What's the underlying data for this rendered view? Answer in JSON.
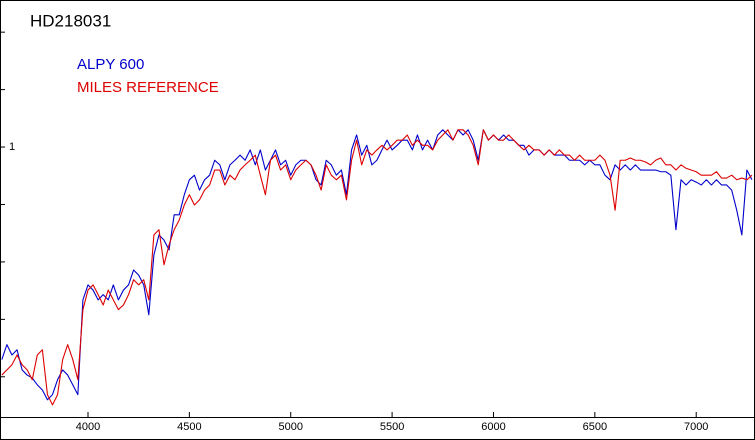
{
  "chart_data": {
    "type": "line",
    "title": "HD218031",
    "xlim": [
      3566,
      7290
    ],
    "xticks": [
      4000,
      4500,
      5000,
      5500,
      6000,
      6500,
      7000
    ],
    "ylim": [
      0.53,
      1.256
    ],
    "yticks": [
      1
    ],
    "minor_yticks": [
      0.6,
      0.7,
      0.8,
      0.9,
      1.1,
      1.2
    ],
    "legend": "top-left",
    "x": [
      3575,
      3600,
      3625,
      3650,
      3675,
      3700,
      3725,
      3750,
      3775,
      3800,
      3825,
      3850,
      3875,
      3900,
      3925,
      3950,
      3975,
      4000,
      4025,
      4050,
      4075,
      4100,
      4125,
      4150,
      4175,
      4200,
      4225,
      4250,
      4275,
      4300,
      4325,
      4350,
      4375,
      4400,
      4425,
      4450,
      4475,
      4500,
      4525,
      4550,
      4575,
      4600,
      4625,
      4650,
      4675,
      4700,
      4725,
      4750,
      4775,
      4800,
      4825,
      4850,
      4875,
      4900,
      4925,
      4950,
      4975,
      5000,
      5025,
      5050,
      5075,
      5100,
      5125,
      5150,
      5175,
      5200,
      5225,
      5250,
      5275,
      5300,
      5325,
      5350,
      5375,
      5400,
      5425,
      5450,
      5475,
      5500,
      5525,
      5550,
      5575,
      5600,
      5625,
      5650,
      5675,
      5700,
      5725,
      5750,
      5775,
      5800,
      5825,
      5850,
      5875,
      5900,
      5925,
      5950,
      5975,
      6000,
      6025,
      6050,
      6075,
      6100,
      6125,
      6150,
      6175,
      6200,
      6225,
      6250,
      6275,
      6300,
      6325,
      6350,
      6375,
      6400,
      6425,
      6450,
      6475,
      6500,
      6525,
      6550,
      6575,
      6600,
      6625,
      6650,
      6675,
      6700,
      6725,
      6750,
      6775,
      6800,
      6825,
      6850,
      6875,
      6900,
      6925,
      6950,
      6975,
      7000,
      7025,
      7050,
      7075,
      7100,
      7125,
      7150,
      7175,
      7200,
      7225,
      7250,
      7275
    ],
    "series": [
      {
        "name": "ALPY 600",
        "color": "#0000cc",
        "values": [
          0.63,
          0.656,
          0.638,
          0.647,
          0.612,
          0.603,
          0.598,
          0.586,
          0.577,
          0.56,
          0.569,
          0.595,
          0.612,
          0.603,
          0.586,
          0.569,
          0.734,
          0.76,
          0.751,
          0.734,
          0.743,
          0.734,
          0.76,
          0.734,
          0.751,
          0.76,
          0.786,
          0.777,
          0.76,
          0.708,
          0.812,
          0.847,
          0.838,
          0.821,
          0.882,
          0.882,
          0.917,
          0.943,
          0.951,
          0.925,
          0.943,
          0.951,
          0.977,
          0.969,
          0.943,
          0.969,
          0.977,
          0.986,
          0.977,
          0.995,
          0.969,
          0.995,
          0.96,
          0.977,
          0.995,
          0.969,
          0.977,
          0.951,
          0.969,
          0.977,
          0.977,
          0.969,
          0.943,
          0.934,
          0.977,
          0.969,
          0.951,
          0.96,
          0.917,
          0.995,
          1.021,
          0.986,
          1.003,
          0.969,
          0.977,
          0.995,
          1.012,
          0.995,
          1.003,
          1.012,
          1.012,
          0.995,
          1.021,
          0.995,
          1.012,
          0.995,
          1.021,
          1.03,
          1.021,
          1.012,
          1.03,
          1.021,
          1.03,
          1.012,
          0.977,
          1.03,
          1.012,
          1.021,
          1.012,
          1.021,
          1.012,
          1.012,
          1.003,
          1.003,
          0.986,
          0.995,
          0.995,
          0.986,
          0.995,
          0.986,
          0.986,
          0.986,
          0.977,
          0.977,
          0.977,
          0.969,
          0.977,
          0.969,
          0.969,
          0.951,
          0.943,
          0.969,
          0.96,
          0.969,
          0.96,
          0.969,
          0.96,
          0.96,
          0.96,
          0.96,
          0.957,
          0.957,
          0.951,
          0.856,
          0.943,
          0.934,
          0.943,
          0.939,
          0.934,
          0.943,
          0.934,
          0.943,
          0.934,
          0.934,
          0.925,
          0.89,
          0.847,
          0.96,
          0.943
        ]
      },
      {
        "name": "MILES REFERENCE",
        "color": "#dd0000",
        "values": [
          0.603,
          0.612,
          0.621,
          0.638,
          0.621,
          0.612,
          0.595,
          0.638,
          0.647,
          0.569,
          0.551,
          0.569,
          0.63,
          0.656,
          0.63,
          0.595,
          0.717,
          0.751,
          0.76,
          0.743,
          0.725,
          0.751,
          0.734,
          0.717,
          0.725,
          0.743,
          0.769,
          0.76,
          0.769,
          0.734,
          0.847,
          0.856,
          0.795,
          0.83,
          0.856,
          0.873,
          0.899,
          0.917,
          0.899,
          0.908,
          0.925,
          0.934,
          0.96,
          0.96,
          0.934,
          0.951,
          0.943,
          0.96,
          0.969,
          0.977,
          0.986,
          0.951,
          0.917,
          0.977,
          0.986,
          0.96,
          0.969,
          0.943,
          0.96,
          0.969,
          0.977,
          0.969,
          0.951,
          0.925,
          0.969,
          0.951,
          0.943,
          0.951,
          0.908,
          0.977,
          1.012,
          0.969,
          0.995,
          0.986,
          0.995,
          1.003,
          0.995,
          1.003,
          1.012,
          1.012,
          1.021,
          1.003,
          1.012,
          1.003,
          1.003,
          0.995,
          1.012,
          1.021,
          1.03,
          1.012,
          1.03,
          1.03,
          1.021,
          1.003,
          0.969,
          1.03,
          1.012,
          1.021,
          1.012,
          1.012,
          1.021,
          1.012,
          1.003,
          0.995,
          1.003,
          0.995,
          0.995,
          0.986,
          0.995,
          0.986,
          0.995,
          0.986,
          0.986,
          0.977,
          0.986,
          0.977,
          0.977,
          0.977,
          0.986,
          0.977,
          0.951,
          0.89,
          0.977,
          0.977,
          0.981,
          0.977,
          0.977,
          0.974,
          0.969,
          0.977,
          0.981,
          0.969,
          0.969,
          0.96,
          0.969,
          0.963,
          0.96,
          0.957,
          0.951,
          0.951,
          0.951,
          0.957,
          0.946,
          0.946,
          0.951,
          0.943,
          0.946,
          0.943,
          0.951
        ]
      }
    ]
  }
}
